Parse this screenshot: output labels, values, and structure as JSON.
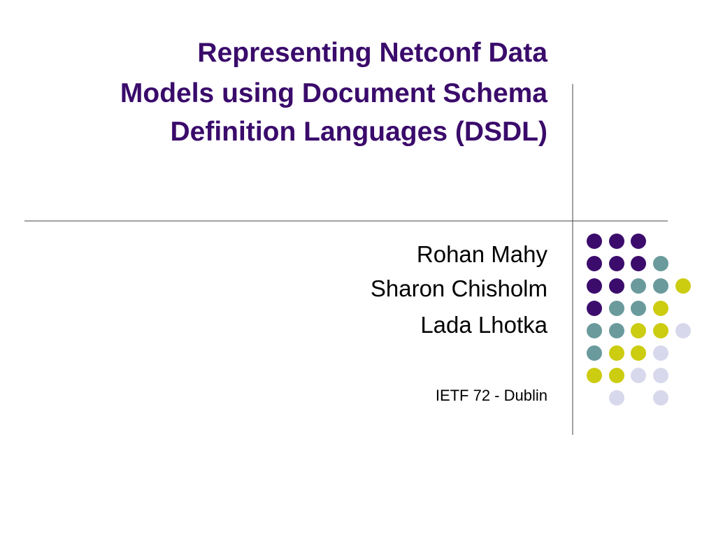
{
  "title": [
    "Representing Netconf Data",
    "Models using Document Schema",
    "Definition Languages (DSDL)"
  ],
  "authors": [
    "Rohan Mahy",
    "Sharon Chisholm",
    "Lada Lhotka"
  ],
  "event": "IETF 72 - Dublin"
}
